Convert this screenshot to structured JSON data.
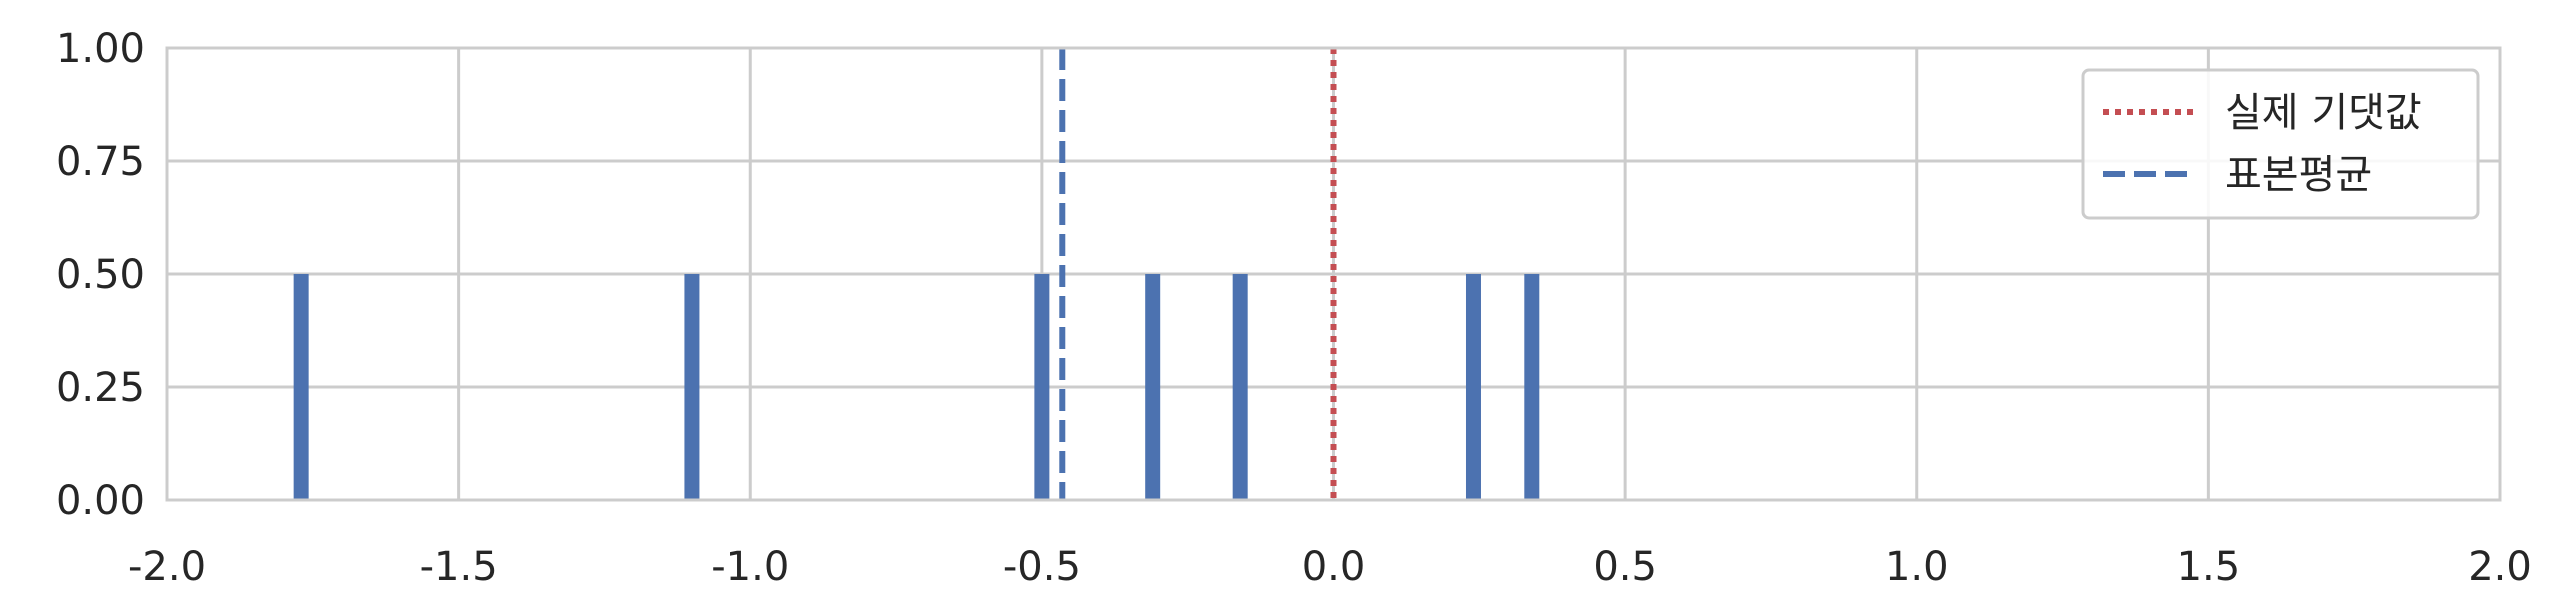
{
  "chart_data": {
    "type": "bar",
    "title": "",
    "xlabel": "",
    "ylabel": "",
    "xlim": [
      -2.0,
      2.0
    ],
    "ylim": [
      0.0,
      1.0
    ],
    "grid": true,
    "legend_position": "top-right",
    "x_ticks": [
      "-2.0",
      "-1.5",
      "-1.0",
      "-0.5",
      "0.0",
      "0.5",
      "1.0",
      "1.5",
      "2.0"
    ],
    "y_ticks": [
      "0.00",
      "0.25",
      "0.50",
      "0.75",
      "1.00"
    ],
    "bars": {
      "x": [
        -1.77,
        -1.1,
        -0.5,
        -0.31,
        -0.16,
        0.24,
        0.34
      ],
      "values": [
        0.5,
        0.5,
        0.5,
        0.5,
        0.5,
        0.5,
        0.5
      ],
      "color": "#4c72b0"
    },
    "reference_lines": [
      {
        "name": "실제 기댓값",
        "x": 0.0,
        "color": "#c44e52",
        "style": "dotted"
      },
      {
        "name": "표본평균",
        "x": -0.465,
        "color": "#4c72b0",
        "style": "dashed"
      }
    ]
  }
}
